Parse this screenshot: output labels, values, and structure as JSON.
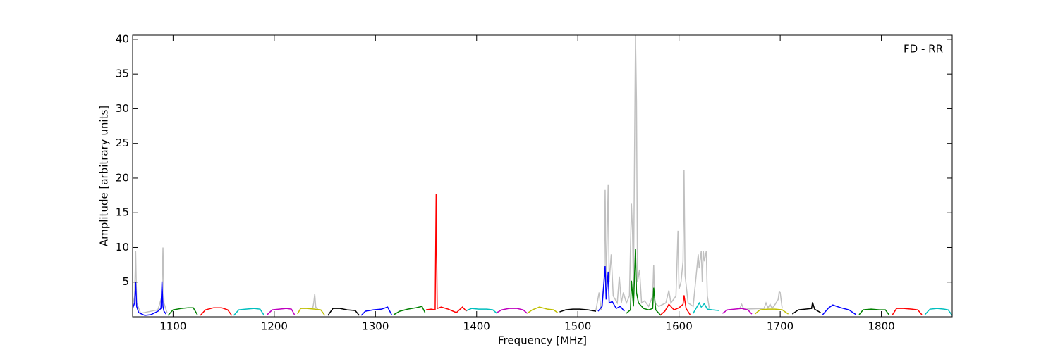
{
  "chart_data": {
    "type": "line",
    "annotation": "FD - RR",
    "xlabel": "Frequency [MHz]",
    "ylabel": "Amplitude [arbitrary units]",
    "xlim": [
      1060,
      1870
    ],
    "ylim": [
      0,
      40.6
    ],
    "xticks": [
      1100,
      1200,
      1300,
      1400,
      1500,
      1600,
      1700,
      1800
    ],
    "yticks": [
      5,
      10,
      15,
      20,
      25,
      30,
      35,
      40
    ],
    "grid": false,
    "series": [
      {
        "color": "#c0c0c0",
        "x": [
          1060,
          1062,
          1063,
          1064,
          1068,
          1085,
          1089,
          1090,
          1091,
          1094,
          1150,
          1238,
          1239,
          1240,
          1241,
          1243,
          1300,
          1518,
          1521,
          1523,
          1526,
          1527,
          1528,
          1530,
          1531,
          1533,
          1535,
          1539,
          1541,
          1543,
          1545,
          1548,
          1551,
          1553,
          1554,
          1555,
          1557,
          1558,
          1559,
          1561,
          1563,
          1566,
          1570,
          1574,
          1575,
          1576,
          1580,
          1587,
          1590,
          1592,
          1597,
          1599,
          1600,
          1602,
          1604,
          1605,
          1606,
          1609,
          1614,
          1617,
          1619,
          1620,
          1622,
          1623,
          1624,
          1625,
          1627,
          1628,
          1630,
          1650,
          1660,
          1662,
          1664,
          1684,
          1686,
          1688,
          1690,
          1692,
          1695,
          1698,
          1699,
          1700,
          1702
        ],
        "values": [
          1.5,
          3,
          9.5,
          2,
          0.5,
          1,
          3,
          10,
          2,
          0.6,
          null,
          1.2,
          2,
          3.3,
          1.4,
          1.1,
          null,
          1,
          3.5,
          1,
          5,
          18.3,
          4,
          19,
          5,
          9,
          3,
          2,
          5.8,
          2,
          3.5,
          2,
          3,
          16.3,
          12.5,
          4,
          40.6,
          31,
          5,
          6.8,
          2,
          2.3,
          1.5,
          3,
          7.5,
          2,
          1.5,
          2,
          3.8,
          2,
          3,
          12.4,
          4,
          5,
          8,
          21.2,
          6,
          2,
          1.5,
          6,
          9,
          7,
          9.5,
          5,
          9.5,
          8,
          9.5,
          3,
          1.2,
          null,
          1.2,
          1.8,
          1.1,
          1.2,
          2,
          1.3,
          1.8,
          1.2,
          1.8,
          2.5,
          3.6,
          3.5,
          1.2
        ]
      },
      {
        "color": "#0000ff",
        "x": [
          1060,
          1062,
          1063,
          1064,
          1066,
          1072,
          1078,
          1085,
          1088,
          1089,
          1090,
          1091,
          1093
        ],
        "values": [
          1.2,
          2,
          5,
          1.5,
          0.6,
          0.2,
          0.3,
          0.8,
          1.2,
          5.1,
          1.5,
          0.8,
          0.4
        ]
      },
      {
        "color": "#008000",
        "x": [
          1095,
          1100,
          1108,
          1115,
          1120,
          1124
        ],
        "values": [
          0.2,
          1,
          1.2,
          1.3,
          1.3,
          0.3
        ]
      },
      {
        "color": "#ff0000",
        "x": [
          1127,
          1132,
          1140,
          1148,
          1154,
          1158
        ],
        "values": [
          0.2,
          1,
          1.3,
          1.3,
          1,
          0.2
        ]
      },
      {
        "color": "#00bfbf",
        "x": [
          1160,
          1165,
          1172,
          1180,
          1186,
          1190
        ],
        "values": [
          0.2,
          1,
          1.1,
          1.2,
          1.1,
          0.2
        ]
      },
      {
        "color": "#bf00bf",
        "x": [
          1193,
          1198,
          1205,
          1212,
          1217,
          1220
        ],
        "values": [
          0.3,
          1,
          1.1,
          1.2,
          1.1,
          0.3
        ]
      },
      {
        "color": "#bfbf00",
        "x": [
          1223,
          1226,
          1232,
          1240,
          1246,
          1250
        ],
        "values": [
          0.4,
          1.2,
          1.2,
          1.1,
          1,
          0.2
        ]
      },
      {
        "color": "#000000",
        "x": [
          1253,
          1258,
          1265,
          1272,
          1280,
          1284
        ],
        "values": [
          0.2,
          1.2,
          1.2,
          1,
          0.9,
          0.2
        ]
      },
      {
        "color": "#0000ff",
        "x": [
          1286,
          1290,
          1298,
          1306,
          1312,
          1316
        ],
        "values": [
          0.2,
          0.8,
          1,
          1.1,
          1.4,
          0.3
        ]
      },
      {
        "color": "#008000",
        "x": [
          1318,
          1324,
          1332,
          1340,
          1346,
          1349
        ],
        "values": [
          0.3,
          0.8,
          1.1,
          1.3,
          1.5,
          0.6
        ]
      },
      {
        "color": "#ff0000",
        "x": [
          1350,
          1355,
          1359,
          1360,
          1361,
          1365,
          1372,
          1380,
          1386,
          1390
        ],
        "values": [
          1,
          1.1,
          1,
          17.7,
          1.2,
          1.4,
          1.1,
          0.6,
          1.4,
          0.8
        ]
      },
      {
        "color": "#00bfbf",
        "x": [
          1390,
          1395,
          1402,
          1410,
          1416,
          1420
        ],
        "values": [
          0.9,
          1.2,
          1.1,
          1.1,
          1,
          0.5
        ]
      },
      {
        "color": "#bf00bf",
        "x": [
          1420,
          1425,
          1432,
          1440,
          1446,
          1450
        ],
        "values": [
          0.6,
          1,
          1.2,
          1.2,
          1,
          0.5
        ]
      },
      {
        "color": "#bfbf00",
        "x": [
          1450,
          1455,
          1462,
          1470,
          1476,
          1480
        ],
        "values": [
          0.5,
          1,
          1.4,
          1.1,
          1,
          0.6
        ]
      },
      {
        "color": "#000000",
        "x": [
          1482,
          1488,
          1495,
          1502,
          1510,
          1518
        ],
        "values": [
          0.7,
          1,
          1.1,
          1.1,
          1,
          0.8
        ]
      },
      {
        "color": "#0000ff",
        "x": [
          1520,
          1524,
          1527,
          1528,
          1530,
          1531,
          1534,
          1538,
          1542,
          1546
        ],
        "values": [
          0.8,
          1.5,
          7.3,
          2.5,
          6.5,
          2,
          2.2,
          1.2,
          1.5,
          0.8
        ]
      },
      {
        "color": "#008000",
        "x": [
          1548,
          1552,
          1553,
          1555,
          1557,
          1558,
          1560,
          1565,
          1570,
          1574,
          1575,
          1577,
          1582
        ],
        "values": [
          0.5,
          1,
          5.2,
          1.5,
          9.8,
          3.5,
          2,
          1.2,
          1,
          1.2,
          4.2,
          1,
          0.2
        ]
      },
      {
        "color": "#ff0000",
        "x": [
          1582,
          1586,
          1590,
          1595,
          1600,
          1604,
          1605,
          1607,
          1611
        ],
        "values": [
          0.3,
          0.8,
          1.8,
          1,
          1.3,
          1.8,
          3.1,
          1.2,
          0.3
        ]
      },
      {
        "color": "#00bfbf",
        "x": [
          1614,
          1618,
          1620,
          1622,
          1625,
          1628,
          1633,
          1640
        ],
        "values": [
          0.5,
          1.5,
          2,
          1.4,
          1.9,
          1.1,
          1,
          0.9
        ]
      },
      {
        "color": "#bf00bf",
        "x": [
          1643,
          1648,
          1655,
          1662,
          1668,
          1672
        ],
        "values": [
          0.5,
          1,
          1.1,
          1.2,
          1,
          0.4
        ]
      },
      {
        "color": "#bfbf00",
        "x": [
          1675,
          1680,
          1688,
          1695,
          1702,
          1708
        ],
        "values": [
          0.4,
          1,
          1.1,
          1.1,
          1,
          0.4
        ]
      },
      {
        "color": "#000000",
        "x": [
          1712,
          1718,
          1725,
          1731,
          1732,
          1734,
          1740
        ],
        "values": [
          0.4,
          1,
          1.1,
          1.2,
          2.1,
          1.1,
          0.6
        ]
      },
      {
        "color": "#0000ff",
        "x": [
          1742,
          1748,
          1752,
          1760,
          1768,
          1775
        ],
        "values": [
          0.3,
          1.3,
          1.7,
          1.3,
          1,
          0.3
        ]
      },
      {
        "color": "#008000",
        "x": [
          1778,
          1782,
          1790,
          1798,
          1804,
          1808
        ],
        "values": [
          0.3,
          1,
          1.1,
          1,
          1,
          0.2
        ]
      },
      {
        "color": "#ff0000",
        "x": [
          1811,
          1815,
          1822,
          1830,
          1836,
          1840
        ],
        "values": [
          0.3,
          1.2,
          1.2,
          1.1,
          1,
          0.3
        ]
      },
      {
        "color": "#00bfbf",
        "x": [
          1843,
          1848,
          1855,
          1862,
          1866,
          1870
        ],
        "values": [
          0.3,
          1.1,
          1.2,
          1.1,
          1,
          0.2
        ]
      }
    ]
  }
}
